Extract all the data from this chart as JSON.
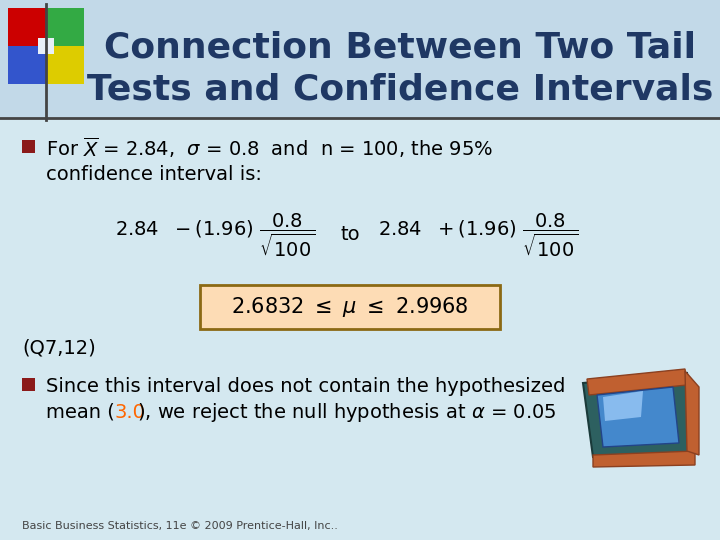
{
  "title_line1": "Connection Between Two Tail",
  "title_line2": "Tests and Confidence Intervals",
  "title_color": "#1F3864",
  "bg_color": "#D4E8F0",
  "header_bg": "#C2D9E8",
  "text_color": "#000000",
  "orange_text": "#FF6600",
  "formula_box_bg": "#FDDCB5",
  "formula_box_edge": "#8B6914",
  "footer_text": "Basic Business Statistics, 11e © 2009 Prentice-Hall, Inc..",
  "q_ref": "(Q7,12)"
}
